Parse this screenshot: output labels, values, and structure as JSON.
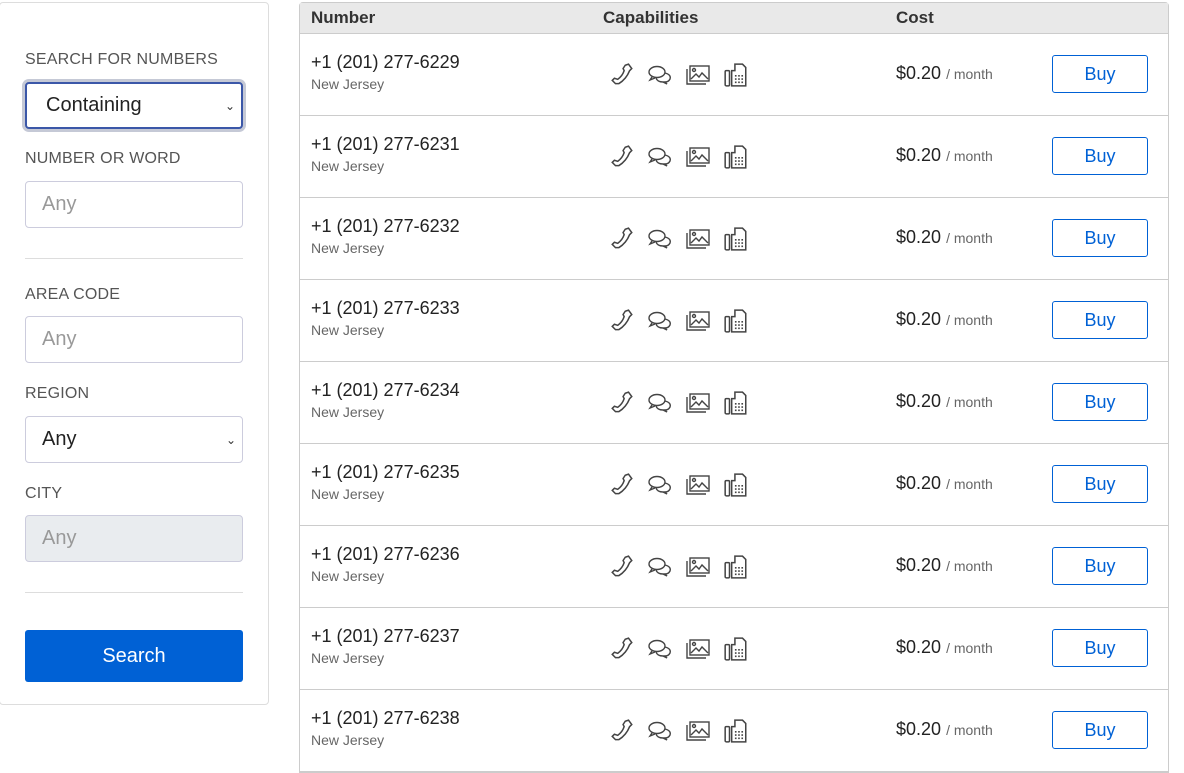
{
  "sidebar": {
    "search_for_label": "SEARCH FOR NUMBERS",
    "search_for_value": "Containing",
    "number_label": "NUMBER OR WORD",
    "number_placeholder": "Any",
    "area_label": "AREA CODE",
    "area_placeholder": "Any",
    "region_label": "REGION",
    "region_value": "Any",
    "city_label": "CITY",
    "city_placeholder": "Any",
    "search_button": "Search"
  },
  "table": {
    "headers": [
      "Number",
      "Capabilities",
      "Cost"
    ],
    "capabilities_icons": [
      "phone-icon",
      "chat-icon",
      "image-icon",
      "fax-icon"
    ],
    "rows": [
      {
        "number": "+1 (201) 277-6229",
        "region": "New Jersey",
        "price": "$0.20",
        "period": "/ month",
        "action": "Buy"
      },
      {
        "number": "+1 (201) 277-6231",
        "region": "New Jersey",
        "price": "$0.20",
        "period": "/ month",
        "action": "Buy"
      },
      {
        "number": "+1 (201) 277-6232",
        "region": "New Jersey",
        "price": "$0.20",
        "period": "/ month",
        "action": "Buy"
      },
      {
        "number": "+1 (201) 277-6233",
        "region": "New Jersey",
        "price": "$0.20",
        "period": "/ month",
        "action": "Buy"
      },
      {
        "number": "+1 (201) 277-6234",
        "region": "New Jersey",
        "price": "$0.20",
        "period": "/ month",
        "action": "Buy"
      },
      {
        "number": "+1 (201) 277-6235",
        "region": "New Jersey",
        "price": "$0.20",
        "period": "/ month",
        "action": "Buy"
      },
      {
        "number": "+1 (201) 277-6236",
        "region": "New Jersey",
        "price": "$0.20",
        "period": "/ month",
        "action": "Buy"
      },
      {
        "number": "+1 (201) 277-6237",
        "region": "New Jersey",
        "price": "$0.20",
        "period": "/ month",
        "action": "Buy"
      },
      {
        "number": "+1 (201) 277-6238",
        "region": "New Jersey",
        "price": "$0.20",
        "period": "/ month",
        "action": "Buy"
      }
    ]
  },
  "colors": {
    "accent": "#0061d5",
    "header_bg": "#e9e9e9"
  }
}
